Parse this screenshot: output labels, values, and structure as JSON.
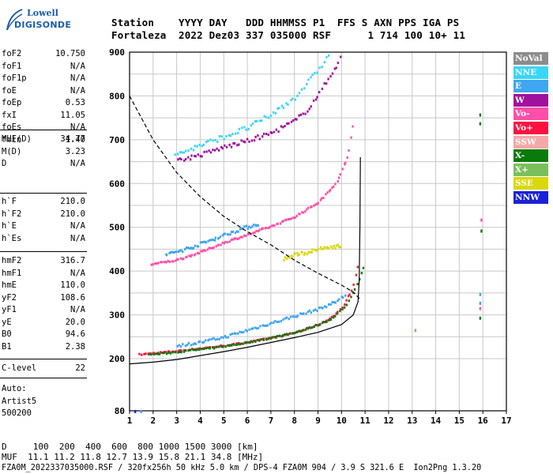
{
  "logo": {
    "line1": "Lowell",
    "line2": "DIGISONDE"
  },
  "header": {
    "row1": "Station    YYYY DAY   DDD HHMMSS P1  FFS S AXN PPS IGA PS",
    "row2": "Fortaleza  2022 Dez03 337 035000 RSF      1 714 100 10+ 11"
  },
  "params_group1": [
    {
      "k": "foF2",
      "v": "10.750"
    },
    {
      "k": "foF1",
      "v": "N/A"
    },
    {
      "k": "foF1p",
      "v": "N/A"
    },
    {
      "k": "foE",
      "v": "N/A"
    },
    {
      "k": "foEp",
      "v": "0.53"
    },
    {
      "k": "fxI",
      "v": "11.05"
    },
    {
      "k": "foEs",
      "v": "N/A"
    },
    {
      "k": "fmin",
      "v": "1.40"
    }
  ],
  "params_group2": [
    {
      "k": "MUF(D)",
      "v": "34.77"
    },
    {
      "k": "M(D)",
      "v": "3.23"
    },
    {
      "k": "D",
      "v": "N/A"
    }
  ],
  "params_group3": [
    {
      "k": "h`F",
      "v": "210.0"
    },
    {
      "k": "h`F2",
      "v": "210.0"
    },
    {
      "k": "h`E",
      "v": "N/A"
    },
    {
      "k": "h`Es",
      "v": "N/A"
    }
  ],
  "params_group4": [
    {
      "k": "hmF2",
      "v": "316.7"
    },
    {
      "k": "hmF1",
      "v": "N/A"
    },
    {
      "k": "hmE",
      "v": "110.0"
    },
    {
      "k": "yF2",
      "v": "108.6"
    },
    {
      "k": "yF1",
      "v": "N/A"
    },
    {
      "k": "yE",
      "v": "20.0"
    },
    {
      "k": "B0",
      "v": "94.6"
    },
    {
      "k": "B1",
      "v": "2.38"
    }
  ],
  "params_group5": [
    {
      "k": "C-level",
      "v": "22"
    }
  ],
  "auto": {
    "line1": "Auto:",
    "line2": "Artist5",
    "line3": "500200"
  },
  "legend": [
    {
      "label": "NoVal",
      "bg": "#8c8c8c",
      "fg": "#ffffff"
    },
    {
      "label": "NNE",
      "bg": "#3ad6f5",
      "fg": "#ffffff"
    },
    {
      "label": "E",
      "bg": "#3fa6f0",
      "fg": "#ffffff"
    },
    {
      "label": "W",
      "bg": "#a0129e",
      "fg": "#ffffff"
    },
    {
      "label": "Vo-",
      "bg": "#ff4fa8",
      "fg": "#ffffff"
    },
    {
      "label": "Vo+",
      "bg": "#ff1040",
      "fg": "#ffffff"
    },
    {
      "label": "SSW",
      "bg": "#f5a8a8",
      "fg": "#ffffff"
    },
    {
      "label": "X-",
      "bg": "#0a7a0a",
      "fg": "#ffffff"
    },
    {
      "label": "X+",
      "bg": "#7bbf5c",
      "fg": "#ffffff"
    },
    {
      "label": "SSE",
      "bg": "#d8d80a",
      "fg": "#ffffff"
    },
    {
      "label": "NNW",
      "bg": "#1a22d8",
      "fg": "#ffffff"
    }
  ],
  "footer": {
    "d_row": "D     100  200  400  600  800 1000 1500 3000 [km]",
    "muf_row": "MUF  11.1 11.2 11.8 12.7 13.9 15.8 21.1 34.8 [MHz]",
    "file_row": "FZA0M_2022337035000.RSF / 320fx256h 50 kHz 5.0 km / DPS-4 FZA0M 904 / 3.9 S 321.6 E  Ion2Png 1.3.20"
  },
  "chart_data": {
    "type": "scatter",
    "title": "",
    "xlabel": "",
    "ylabel": "",
    "xlim": [
      1,
      17
    ],
    "ylim": [
      80,
      900
    ],
    "x_ticks": [
      "1",
      "2",
      "3",
      "4",
      "5",
      "6",
      "7",
      "8",
      "9",
      "10",
      "11",
      "12",
      "13",
      "14",
      "15",
      "16",
      "17"
    ],
    "y_ticks": [
      "80",
      "200",
      "300",
      "400",
      "500",
      "600",
      "700",
      "800",
      "900"
    ],
    "grid": true,
    "colors": {
      "E": "#3fa6f0",
      "NNE": "#3ad6f5",
      "W": "#a0129e",
      "Vo-": "#ff4fa8",
      "Vo+": "#ff1040",
      "X-": "#0a7a0a",
      "X+": "#7bbf5c",
      "SSE": "#d8d80a",
      "NNW": "#1a22d8"
    },
    "series": [
      {
        "name": "Vo+",
        "trace": [
          [
            1.4,
            212
          ],
          [
            2,
            215
          ],
          [
            3,
            220
          ],
          [
            4,
            226
          ],
          [
            5,
            232
          ],
          [
            6,
            240
          ],
          [
            7,
            250
          ],
          [
            8,
            262
          ],
          [
            9,
            280
          ],
          [
            9.5,
            295
          ],
          [
            10,
            318
          ],
          [
            10.4,
            360
          ],
          [
            10.6,
            395
          ],
          [
            10.75,
            450
          ]
        ]
      },
      {
        "name": "X-",
        "trace": [
          [
            1.8,
            212
          ],
          [
            2.5,
            215
          ],
          [
            3.5,
            221
          ],
          [
            4.5,
            227
          ],
          [
            5.5,
            235
          ],
          [
            6.5,
            245
          ],
          [
            7.5,
            256
          ],
          [
            8.5,
            270
          ],
          [
            9.5,
            292
          ],
          [
            10.2,
            325
          ],
          [
            10.7,
            380
          ],
          [
            11,
            430
          ]
        ]
      },
      {
        "name": "E",
        "trace": [
          [
            3,
            232
          ],
          [
            4,
            240
          ],
          [
            5,
            252
          ],
          [
            6,
            268
          ],
          [
            7,
            284
          ],
          [
            8,
            300
          ],
          [
            9,
            316
          ],
          [
            9.7,
            332
          ],
          [
            10.2,
            350
          ]
        ]
      },
      {
        "name": "Vo-",
        "trace": [
          [
            1.9,
            418
          ],
          [
            3,
            428
          ],
          [
            4,
            446
          ],
          [
            5,
            468
          ],
          [
            6,
            486
          ],
          [
            7,
            505
          ],
          [
            8,
            527
          ],
          [
            9,
            560
          ],
          [
            9.8,
            608
          ],
          [
            10.2,
            660
          ],
          [
            10.4,
            715
          ],
          [
            10.5,
            760
          ]
        ]
      },
      {
        "name": "E2",
        "trace": [
          [
            2.5,
            440
          ],
          [
            3.5,
            455
          ],
          [
            4.5,
            475
          ],
          [
            5.5,
            495
          ],
          [
            6.5,
            512
          ]
        ]
      },
      {
        "name": "W",
        "trace": [
          [
            3,
            655
          ],
          [
            4,
            668
          ],
          [
            5,
            686
          ],
          [
            6,
            700
          ],
          [
            7,
            718
          ],
          [
            8,
            746
          ],
          [
            8.5,
            770
          ],
          [
            9,
            806
          ],
          [
            9.5,
            850
          ],
          [
            10,
            895
          ]
        ]
      },
      {
        "name": "NNE",
        "trace": [
          [
            2.9,
            668
          ],
          [
            4,
            690
          ],
          [
            5,
            710
          ],
          [
            6,
            730
          ],
          [
            7,
            760
          ],
          [
            8,
            800
          ],
          [
            8.8,
            850
          ],
          [
            9.5,
            900
          ]
        ]
      },
      {
        "name": "SSE",
        "trace": [
          [
            7.5,
            430
          ],
          [
            8,
            440
          ],
          [
            8.5,
            445
          ],
          [
            9,
            452
          ],
          [
            9.5,
            458
          ],
          [
            10,
            460
          ]
        ]
      }
    ],
    "profile_solid": [
      [
        1,
        188
      ],
      [
        2,
        192
      ],
      [
        3,
        198
      ],
      [
        4,
        207
      ],
      [
        5,
        216
      ],
      [
        6,
        226
      ],
      [
        7,
        237
      ],
      [
        8,
        248
      ],
      [
        9,
        260
      ],
      [
        10,
        278
      ],
      [
        10.5,
        300
      ],
      [
        10.7,
        330
      ],
      [
        10.75,
        380
      ],
      [
        10.78,
        500
      ],
      [
        10.8,
        660
      ]
    ],
    "profile_dashed": [
      [
        1,
        800
      ],
      [
        1.5,
        750
      ],
      [
        2,
        700
      ],
      [
        3,
        625
      ],
      [
        4,
        570
      ],
      [
        5,
        525
      ],
      [
        6,
        490
      ],
      [
        7,
        460
      ],
      [
        8,
        425
      ],
      [
        9,
        395
      ],
      [
        10,
        368
      ],
      [
        10.5,
        352
      ],
      [
        10.8,
        335
      ]
    ]
  }
}
